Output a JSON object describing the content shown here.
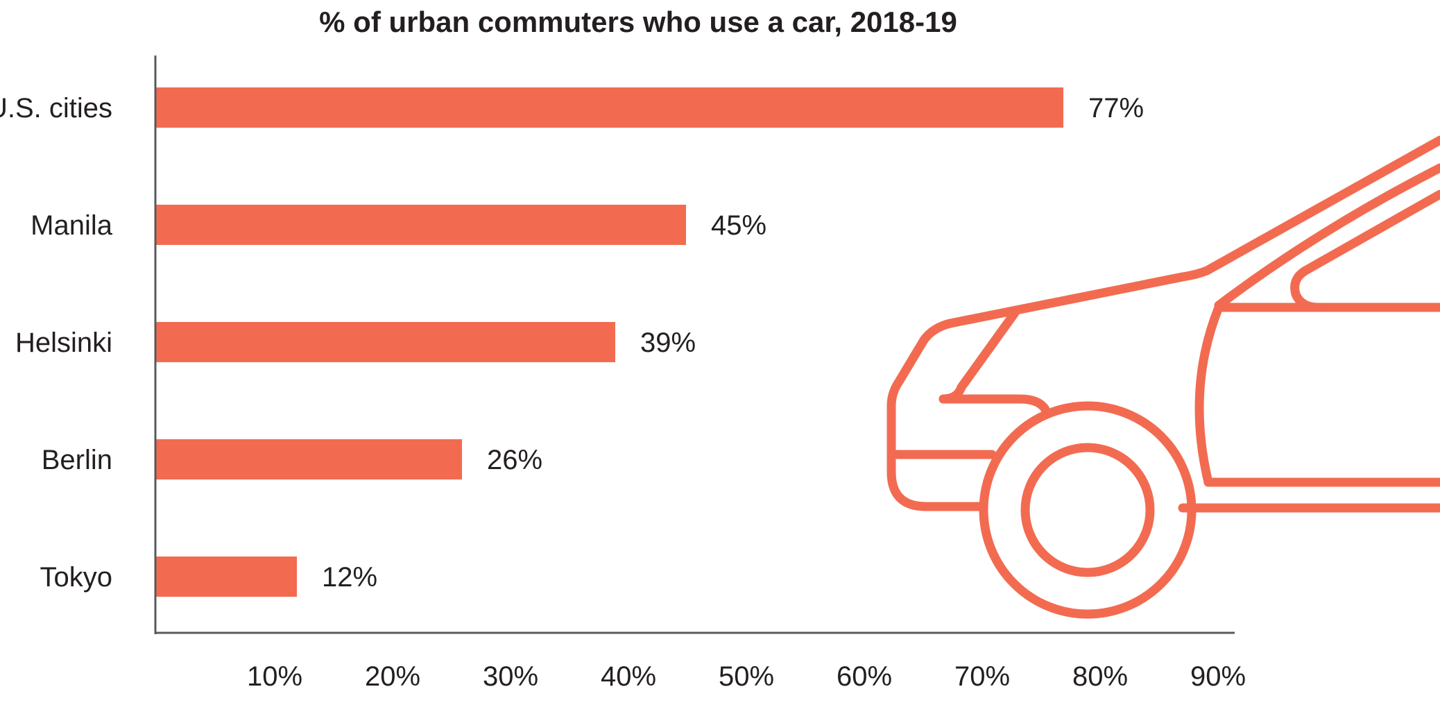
{
  "chart_data": {
    "type": "bar",
    "orientation": "horizontal",
    "title": "% of urban commuters who use a car, 2018-19",
    "categories": [
      "U.S. cities",
      "Manila",
      "Helsinki",
      "Berlin",
      "Tokyo"
    ],
    "values": [
      77,
      45,
      39,
      26,
      12
    ],
    "value_labels": [
      "77%",
      "45%",
      "39%",
      "26%",
      "12%"
    ],
    "xlim": [
      0,
      92
    ],
    "x_ticks": [
      10,
      20,
      30,
      40,
      50,
      60,
      70,
      80,
      90
    ],
    "x_tick_labels": [
      "10%",
      "20%",
      "30%",
      "40%",
      "50%",
      "60%",
      "70%",
      "80%",
      "90%"
    ],
    "xlabel": "",
    "ylabel": "",
    "grid": false,
    "legend": "none",
    "bar_color": "#f26b51",
    "axis_color": "#58595b",
    "text_color": "#231f20",
    "decoration": "car-outline-icon"
  }
}
